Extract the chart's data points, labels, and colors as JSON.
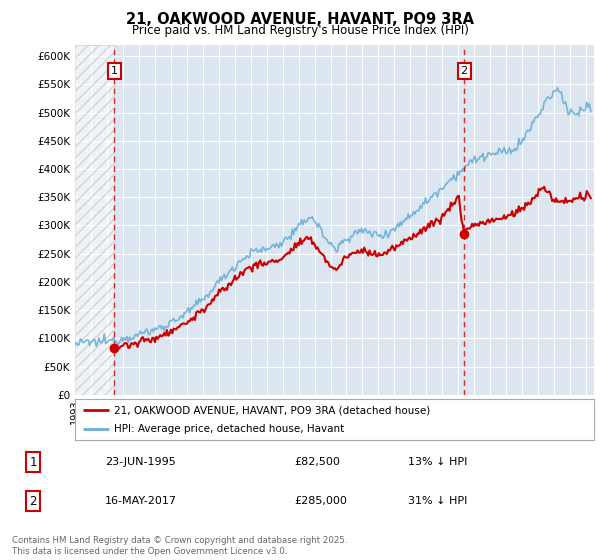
{
  "title": "21, OAKWOOD AVENUE, HAVANT, PO9 3RA",
  "subtitle": "Price paid vs. HM Land Registry's House Price Index (HPI)",
  "ylabel_ticks": [
    "£0",
    "£50K",
    "£100K",
    "£150K",
    "£200K",
    "£250K",
    "£300K",
    "£350K",
    "£400K",
    "£450K",
    "£500K",
    "£550K",
    "£600K"
  ],
  "ylim": [
    0,
    620000
  ],
  "xlim_start": 1993.0,
  "xlim_end": 2025.5,
  "background_color": "#ffffff",
  "plot_bg_color": "#dce6f1",
  "grid_color": "#ffffff",
  "hpi_line_color": "#6baed6",
  "price_line_color": "#cc0000",
  "vline_color": "#cc0000",
  "marker1_x": 1995.47,
  "marker2_x": 2017.37,
  "marker1_price": 82500,
  "marker2_price": 285000,
  "legend_label1": "21, OAKWOOD AVENUE, HAVANT, PO9 3RA (detached house)",
  "legend_label2": "HPI: Average price, detached house, Havant",
  "note1_date": "23-JUN-1995",
  "note1_price": "£82,500",
  "note1_hpi": "13% ↓ HPI",
  "note2_date": "16-MAY-2017",
  "note2_price": "£285,000",
  "note2_hpi": "31% ↓ HPI",
  "copyright": "Contains HM Land Registry data © Crown copyright and database right 2025.\nThis data is licensed under the Open Government Licence v3.0.",
  "hatch_region_end": 1995.47,
  "hatch_region_start": 1993.0
}
